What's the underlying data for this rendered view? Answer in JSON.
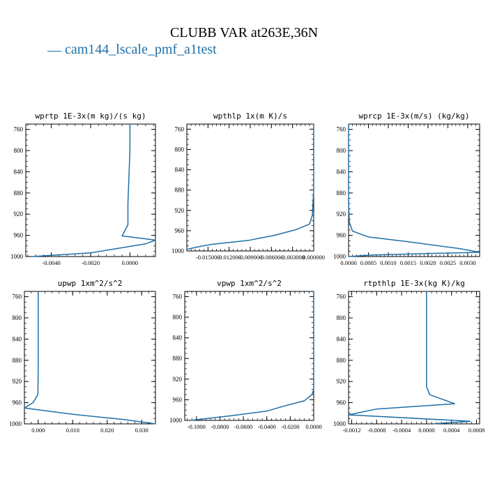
{
  "figure": {
    "title": "CLUBB VAR at263E,36N",
    "legend_label": "cam144_lscale_pmf_a1test",
    "legend_dash": "—",
    "line_color": "#1f6fa8"
  },
  "chart_data": [
    {
      "type": "line",
      "title": "wprtp   1E-3x(m kg)/(s kg)",
      "xlim": [
        -0.0053,
        0.0013
      ],
      "ylim": [
        1000,
        750
      ],
      "xticks": [
        -0.004,
        -0.002,
        0.0
      ],
      "xticklabels": [
        "-0.0040",
        "-0.0020",
        "0.0000"
      ],
      "yticks": [
        760,
        800,
        840,
        880,
        920,
        960,
        1000
      ],
      "yticklabels": [
        "760",
        "800",
        "840",
        "880",
        "920",
        "960",
        "1000"
      ],
      "series": [
        {
          "x": [
            0.0,
            0.0,
            -0.0001,
            -0.0001,
            -0.0004,
            0.0013,
            0.0008,
            -0.002,
            -0.005
          ],
          "y": [
            750,
            800,
            900,
            940,
            961,
            969,
            976,
            993,
            1000
          ]
        }
      ]
    },
    {
      "type": "line",
      "title": "wpthlp  1x(m K)/s",
      "xlim": [
        -0.018,
        0.0
      ],
      "ylim": [
        1000,
        750
      ],
      "xticks": [
        -0.015,
        -0.012,
        -0.009,
        -0.006,
        -0.003,
        0.0
      ],
      "xticklabels": [
        "-0.015000",
        "-0.012000",
        "-0.009000",
        "-0.006000",
        "-0.003000",
        "0.000000"
      ],
      "yticks": [
        760,
        800,
        840,
        880,
        920,
        960,
        1000
      ],
      "yticklabels": [
        "760",
        "800",
        "840",
        "880",
        "920",
        "960",
        "1000"
      ],
      "series": [
        {
          "x": [
            0.0,
            0.0,
            -0.0002,
            -0.0006,
            -0.0025,
            -0.0055,
            -0.0092,
            -0.0145,
            -0.0168,
            -0.018
          ],
          "y": [
            750,
            880,
            930,
            947,
            958,
            969,
            979,
            987,
            993,
            997
          ]
        }
      ]
    },
    {
      "type": "line",
      "title": "wprcp   1E-3x(m/s) (kg/kg)",
      "xlim": [
        0.0,
        0.0033
      ],
      "ylim": [
        1000,
        750
      ],
      "xticks": [
        0.0,
        0.0005,
        0.001,
        0.0015,
        0.002,
        0.0025,
        0.003
      ],
      "xticklabels": [
        "0.0000",
        "0.0005",
        "0.0010",
        "0.0015",
        "0.0020",
        "0.0025",
        "0.0030"
      ],
      "yticks": [
        760,
        800,
        840,
        880,
        920,
        960,
        1000
      ],
      "yticklabels": [
        "760",
        "800",
        "840",
        "880",
        "920",
        "960",
        "1000"
      ],
      "series": [
        {
          "x": [
            0.0,
            0.0,
            2e-05,
            0.0001,
            0.0005,
            0.0015,
            0.0028,
            0.0033,
            0.0006,
            0.0
          ],
          "y": [
            750,
            900,
            935,
            952,
            963,
            972,
            985,
            992,
            997,
            1000
          ]
        }
      ]
    },
    {
      "type": "line",
      "title": "upwp   1xm^2/s^2",
      "xlim": [
        -0.004,
        0.034
      ],
      "ylim": [
        1000,
        750
      ],
      "xticks": [
        0.0,
        0.01,
        0.02,
        0.03
      ],
      "xticklabels": [
        "0.000",
        "0.010",
        "0.020",
        "0.030"
      ],
      "yticks": [
        760,
        800,
        840,
        880,
        920,
        960,
        1000
      ],
      "yticklabels": [
        "760",
        "800",
        "840",
        "880",
        "920",
        "960",
        "1000"
      ],
      "series": [
        {
          "x": [
            0.0,
            0.0,
            -0.0001,
            -0.0015,
            -0.004,
            0.01,
            0.025,
            0.034
          ],
          "y": [
            750,
            900,
            945,
            960,
            970,
            982,
            992,
            1000
          ]
        }
      ]
    },
    {
      "type": "line",
      "title": "vpwp   1xm^2/s^2",
      "xlim": [
        -0.11,
        0.0
      ],
      "ylim": [
        1000,
        750
      ],
      "xticks": [
        -0.1,
        -0.08,
        -0.06,
        -0.04,
        -0.02,
        0.0
      ],
      "xticklabels": [
        "-0.1000",
        "-0.0800",
        "-0.0600",
        "-0.0400",
        "-0.0200",
        "0.0000"
      ],
      "yticks": [
        760,
        800,
        840,
        880,
        920,
        960,
        1000
      ],
      "yticklabels": [
        "760",
        "800",
        "840",
        "880",
        "920",
        "960",
        "1000"
      ],
      "series": [
        {
          "x": [
            0.0,
            0.0,
            -0.0015,
            -0.008,
            -0.025,
            -0.04,
            -0.07,
            -0.105
          ],
          "y": [
            750,
            940,
            950,
            962,
            972,
            982,
            991,
            1000
          ]
        }
      ]
    },
    {
      "type": "line",
      "title": "rtpthlp  1E-3x(kg K)/kg",
      "xlim": [
        -0.00125,
        0.00085
      ],
      "ylim": [
        1000,
        750
      ],
      "xticks": [
        -0.0012,
        -0.0008,
        -0.0004,
        0.0,
        0.0004,
        0.0008
      ],
      "xticklabels": [
        "-0.0012",
        "-0.0008",
        "-0.0004",
        "0.0000",
        "0.0004",
        "0.0008"
      ],
      "yticks": [
        760,
        800,
        840,
        880,
        920,
        960,
        1000
      ],
      "yticklabels": [
        "760",
        "800",
        "840",
        "880",
        "920",
        "960",
        "1000"
      ],
      "series": [
        {
          "x": [
            0.0,
            0.0,
            0.0,
            5e-05,
            0.00045,
            -0.0008,
            -0.00125,
            0.0007,
            0.0001
          ],
          "y": [
            750,
            880,
            930,
            945,
            962,
            972,
            983,
            995,
            1000
          ]
        }
      ]
    }
  ]
}
